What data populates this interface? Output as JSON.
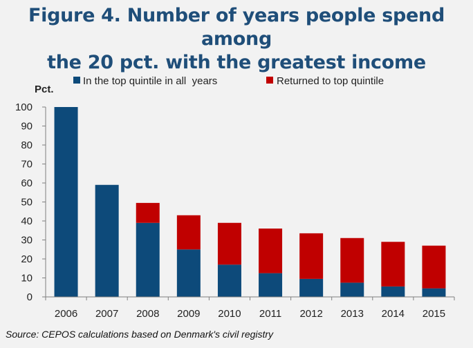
{
  "title": {
    "line1": "Figure 4. Number of years people spend among",
    "line2": "the 20 pct. with the greatest income"
  },
  "source": "Source: CEPOS calculations based on Denmark's civil registry",
  "colors": {
    "top_all_years": "#0d4a7a",
    "returned": "#c00000",
    "background": "#f2f2f2"
  },
  "chart_data": {
    "type": "bar",
    "stacked": true,
    "categories": [
      "2006",
      "2007",
      "2008",
      "2009",
      "2010",
      "2011",
      "2012",
      "2013",
      "2014",
      "2015"
    ],
    "series": [
      {
        "name": "In the top quintile in all  years",
        "values": [
          100,
          59,
          39,
          25,
          17,
          12.5,
          9.5,
          7.5,
          5.5,
          4.5
        ]
      },
      {
        "name": "Returned to top quintile",
        "values": [
          0,
          0,
          10.5,
          18,
          22,
          23.5,
          24,
          23.5,
          23.5,
          22.5
        ]
      }
    ],
    "ylabel": "Pct.",
    "ylim": [
      0,
      100
    ],
    "yticks": [
      0,
      10,
      20,
      30,
      40,
      50,
      60,
      70,
      80,
      90,
      100
    ],
    "grid": false,
    "legend_position": "top"
  }
}
